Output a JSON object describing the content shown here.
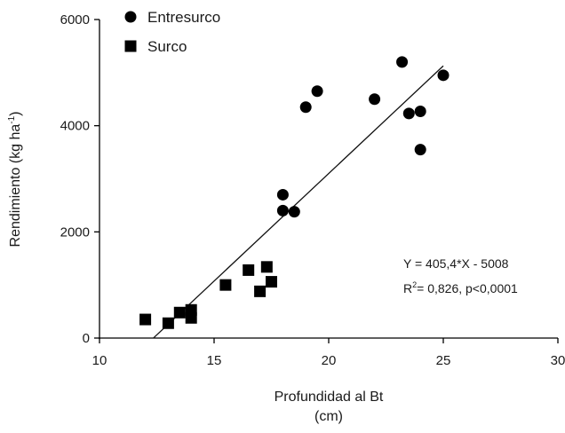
{
  "chart_data": {
    "type": "scatter",
    "xlabel_line1": "Profundidad al Bt",
    "xlabel_line2": "(cm)",
    "ylabel": "Rendimiento (kg ha",
    "ylabel_sup": "-1",
    "ylabel_close": ")",
    "xlim": [
      10,
      30
    ],
    "ylim": [
      0,
      6000
    ],
    "x_ticks": [
      10,
      15,
      20,
      25,
      30
    ],
    "y_ticks": [
      0,
      2000,
      4000,
      6000
    ],
    "grid": false,
    "legend_position": "top-left",
    "series": [
      {
        "name": "Entresurco",
        "marker": "circle",
        "color": "#000000",
        "points": [
          {
            "x": 18.0,
            "y": 2700
          },
          {
            "x": 18.0,
            "y": 2400
          },
          {
            "x": 18.5,
            "y": 2380
          },
          {
            "x": 19.0,
            "y": 4350
          },
          {
            "x": 19.5,
            "y": 4650
          },
          {
            "x": 22.0,
            "y": 4500
          },
          {
            "x": 23.2,
            "y": 5200
          },
          {
            "x": 23.5,
            "y": 4230
          },
          {
            "x": 24.0,
            "y": 4270
          },
          {
            "x": 24.0,
            "y": 3550
          },
          {
            "x": 25.0,
            "y": 4950
          }
        ]
      },
      {
        "name": "Surco",
        "marker": "square",
        "color": "#000000",
        "points": [
          {
            "x": 12.0,
            "y": 350
          },
          {
            "x": 13.0,
            "y": 280
          },
          {
            "x": 13.5,
            "y": 480
          },
          {
            "x": 14.0,
            "y": 380
          },
          {
            "x": 14.0,
            "y": 530
          },
          {
            "x": 15.5,
            "y": 1000
          },
          {
            "x": 16.5,
            "y": 1280
          },
          {
            "x": 17.0,
            "y": 880
          },
          {
            "x": 17.3,
            "y": 1340
          },
          {
            "x": 17.5,
            "y": 1060
          }
        ]
      }
    ],
    "regression": {
      "slope": 405.4,
      "intercept": -5008,
      "x_start": 12.35,
      "x_end": 25.0,
      "equation_text": "Y = 405,4*X - 5008",
      "r2_label": "R",
      "r2_sup": "2",
      "r2_text": "= 0,826, p<0,0001"
    }
  }
}
